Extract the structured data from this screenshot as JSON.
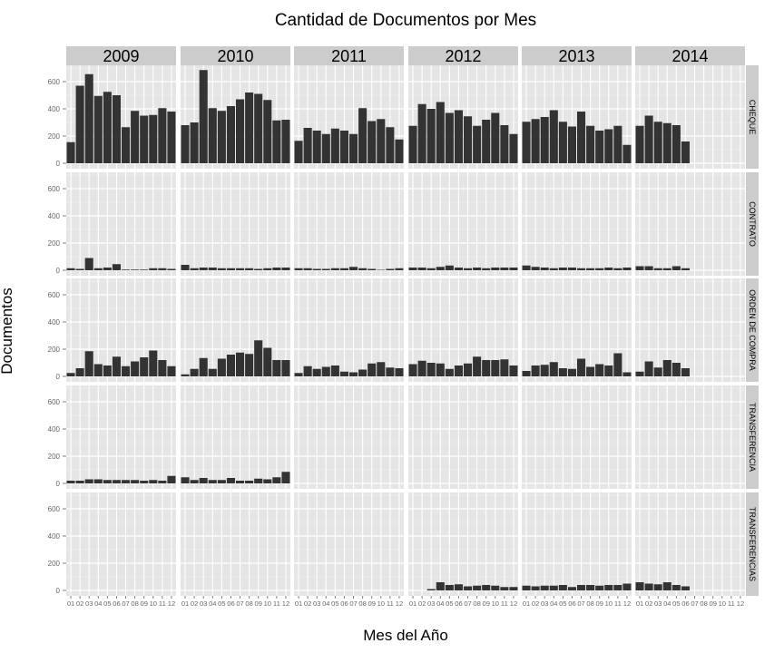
{
  "chart_data": {
    "type": "bar",
    "title": "Cantidad de Documentos por Mes",
    "xlabel": "Mes del Año",
    "ylabel": "Documentos",
    "ylim": [
      0,
      720
    ],
    "yticks": [
      "0",
      "200",
      "400",
      "600"
    ],
    "years": [
      "2009",
      "2010",
      "2011",
      "2012",
      "2013",
      "2014"
    ],
    "months": [
      "01",
      "02",
      "03",
      "04",
      "05",
      "06",
      "07",
      "08",
      "09",
      "10",
      "11",
      "12"
    ],
    "grid": true,
    "colors": {
      "panel": "#e5e5e5",
      "strip": "#cccccc",
      "bar": "#333333",
      "grid": "#ffffff"
    },
    "rows": [
      {
        "name": "CHEQUE",
        "values": [
          [
            155,
            570,
            655,
            495,
            525,
            500,
            265,
            385,
            350,
            355,
            405,
            380
          ],
          [
            280,
            300,
            685,
            405,
            385,
            420,
            470,
            520,
            510,
            465,
            315,
            320
          ],
          [
            165,
            260,
            240,
            215,
            255,
            240,
            215,
            405,
            310,
            325,
            265,
            175
          ],
          [
            275,
            435,
            400,
            450,
            370,
            390,
            345,
            275,
            320,
            370,
            280,
            215
          ],
          [
            305,
            325,
            340,
            390,
            305,
            270,
            380,
            275,
            240,
            250,
            275,
            135
          ],
          [
            275,
            350,
            305,
            295,
            280,
            160,
            null,
            null,
            null,
            null,
            null,
            null
          ]
        ]
      },
      {
        "name": "CONTRATO",
        "values": [
          [
            15,
            10,
            90,
            15,
            20,
            45,
            5,
            5,
            5,
            15,
            15,
            10
          ],
          [
            40,
            15,
            20,
            20,
            15,
            15,
            15,
            15,
            10,
            15,
            20,
            20
          ],
          [
            15,
            15,
            10,
            10,
            15,
            15,
            25,
            15,
            10,
            3,
            10,
            15
          ],
          [
            20,
            20,
            15,
            25,
            35,
            20,
            15,
            20,
            15,
            20,
            20,
            20
          ],
          [
            35,
            25,
            20,
            15,
            20,
            20,
            15,
            15,
            15,
            20,
            15,
            20
          ],
          [
            30,
            30,
            15,
            15,
            30,
            15,
            null,
            null,
            null,
            null,
            null,
            null
          ]
        ]
      },
      {
        "name": "ORDEN DE COMPRA",
        "values": [
          [
            25,
            60,
            185,
            90,
            80,
            145,
            75,
            110,
            140,
            190,
            120,
            75
          ],
          [
            15,
            55,
            135,
            55,
            130,
            160,
            175,
            165,
            265,
            210,
            120,
            120
          ],
          [
            25,
            75,
            55,
            70,
            80,
            35,
            30,
            50,
            95,
            105,
            65,
            60
          ],
          [
            90,
            115,
            100,
            95,
            55,
            80,
            95,
            145,
            120,
            120,
            125,
            80
          ],
          [
            40,
            80,
            85,
            105,
            60,
            55,
            130,
            70,
            90,
            80,
            170,
            30
          ],
          [
            35,
            110,
            65,
            120,
            100,
            60,
            null,
            null,
            null,
            null,
            null,
            null
          ]
        ]
      },
      {
        "name": "TRANSFERENCIA",
        "values": [
          [
            20,
            20,
            30,
            30,
            25,
            25,
            25,
            25,
            20,
            25,
            20,
            55
          ],
          [
            45,
            25,
            40,
            25,
            25,
            40,
            20,
            20,
            35,
            30,
            45,
            85
          ],
          [
            null,
            null,
            null,
            null,
            null,
            null,
            null,
            null,
            null,
            null,
            null,
            null
          ],
          [
            null,
            null,
            null,
            null,
            null,
            null,
            null,
            null,
            null,
            null,
            null,
            null
          ],
          [
            null,
            null,
            null,
            null,
            null,
            null,
            null,
            null,
            null,
            null,
            null,
            null
          ],
          [
            null,
            null,
            null,
            null,
            null,
            null,
            null,
            null,
            null,
            null,
            null,
            null
          ]
        ]
      },
      {
        "name": "TRANSFERENCIAS",
        "values": [
          [
            null,
            null,
            null,
            null,
            null,
            null,
            null,
            null,
            null,
            null,
            null,
            null
          ],
          [
            null,
            null,
            null,
            null,
            null,
            null,
            null,
            null,
            null,
            null,
            null,
            null
          ],
          [
            null,
            null,
            null,
            null,
            null,
            null,
            null,
            null,
            null,
            null,
            null,
            null
          ],
          [
            null,
            null,
            10,
            60,
            40,
            45,
            30,
            35,
            40,
            35,
            25,
            25
          ],
          [
            35,
            30,
            35,
            35,
            40,
            25,
            40,
            40,
            35,
            40,
            40,
            50
          ],
          [
            60,
            50,
            45,
            60,
            40,
            30,
            null,
            null,
            null,
            null,
            null,
            null
          ]
        ]
      }
    ]
  }
}
